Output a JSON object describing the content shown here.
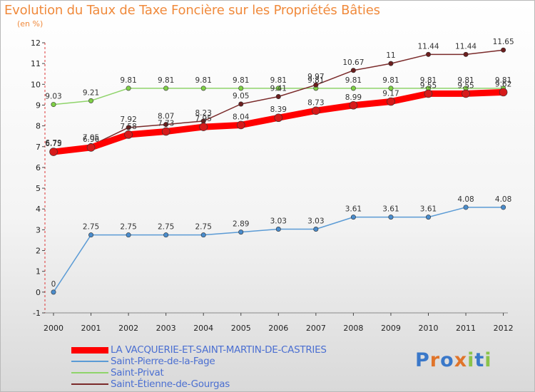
{
  "header": {
    "title": "Evolution du Taux de Taxe Foncière sur les Propriétés Bâties",
    "unit": "(en %)"
  },
  "logo": {
    "text": "Proxiti"
  },
  "chart_data": {
    "type": "line",
    "title": "Evolution du Taux de Taxe Foncière sur les Propriétés Bâties",
    "ylabel": "(en %)",
    "xlabel": "",
    "x": [
      "2000",
      "2001",
      "2002",
      "2003",
      "2004",
      "2005",
      "2006",
      "2007",
      "2008",
      "2009",
      "2010",
      "2011",
      "2012"
    ],
    "ylim": [
      -1,
      12
    ],
    "yticks": [
      "-1",
      "0",
      "1",
      "2",
      "3",
      "4",
      "5",
      "6",
      "7",
      "8",
      "9",
      "10",
      "11",
      "12"
    ],
    "grid": false,
    "legend_position": "bottom-left",
    "series": [
      {
        "name": "LA VACQUERIE-ET-SAINT-MARTIN-DE-CASTRIES",
        "color": "#ff0000",
        "values": [
          6.75,
          6.96,
          7.58,
          7.73,
          7.95,
          8.04,
          8.39,
          8.73,
          8.99,
          9.17,
          9.55,
          9.55,
          9.62
        ],
        "labels": [
          "6.75",
          "6.96",
          "7.58",
          "7.73",
          "7.95",
          "8.04",
          "8.39",
          "8.73",
          "8.99",
          "9.17",
          "9.55",
          "9.55",
          "9.62"
        ]
      },
      {
        "name": "Saint-Pierre-de-la-Fage",
        "color": "#5b9bd5",
        "values": [
          0,
          2.75,
          2.75,
          2.75,
          2.75,
          2.89,
          3.03,
          3.03,
          3.61,
          3.61,
          3.61,
          4.08,
          4.08
        ],
        "labels": [
          "0",
          "2.75",
          "2.75",
          "2.75",
          "2.75",
          "2.89",
          "3.03",
          "3.03",
          "3.61",
          "3.61",
          "3.61",
          "4.08",
          "4.08"
        ]
      },
      {
        "name": "Saint-Privat",
        "color": "#8fd46a",
        "values": [
          9.03,
          9.21,
          9.81,
          9.81,
          9.81,
          9.81,
          9.81,
          9.81,
          9.81,
          9.81,
          9.81,
          9.81,
          9.81
        ],
        "labels": [
          "9.03",
          "9.21",
          "9.81",
          "9.81",
          "9.81",
          "9.81",
          "9.81",
          "9.81",
          "9.81",
          "9.81",
          "9.81",
          "9.81",
          "9.81"
        ]
      },
      {
        "name": "Saint-Étienne-de-Gourgas",
        "color": "#7a2a2a",
        "values": [
          6.79,
          7.05,
          7.92,
          8.07,
          8.23,
          9.05,
          9.41,
          9.97,
          10.67,
          11,
          11.44,
          11.44,
          11.65
        ],
        "labels": [
          "6.79",
          "7.05",
          "7.92",
          "8.07",
          "8.23",
          "9.05",
          "9.41",
          "9.97",
          "10.67",
          "11",
          "11.44",
          "11.44",
          "11.65"
        ]
      }
    ]
  }
}
